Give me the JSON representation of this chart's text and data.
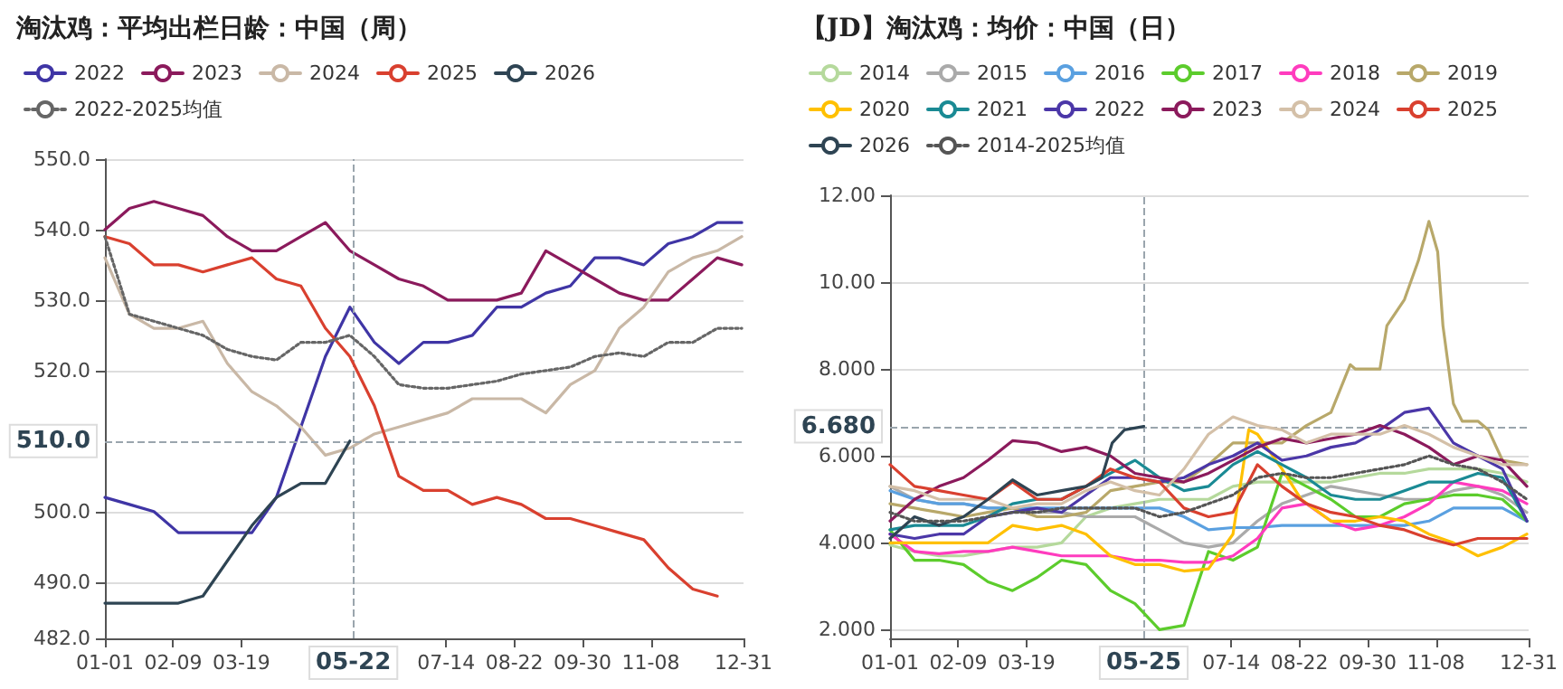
{
  "chart_data": [
    {
      "type": "line",
      "title": "淘汰鸡：平均出栏日龄：中国（周）",
      "legend": "top",
      "grid": "y",
      "xlim": [
        "--01-01",
        "--12-31"
      ],
      "ylim": [
        482,
        550
      ],
      "xticks": [
        {
          "value": "--01-01",
          "label": "01-01"
        },
        {
          "value": "--02-09",
          "label": "02-09"
        },
        {
          "value": "--03-19",
          "label": "03-19"
        },
        {
          "value": "--07-14",
          "label": "07-14"
        },
        {
          "value": "--08-22",
          "label": "08-22"
        },
        {
          "value": "--09-30",
          "label": "09-30"
        },
        {
          "value": "--11-08",
          "label": "11-08"
        },
        {
          "value": "--12-31",
          "label": "12-31"
        }
      ],
      "yticks": [
        {
          "value": 482,
          "label": "482.0"
        },
        {
          "value": 490,
          "label": "490.0"
        },
        {
          "value": 500,
          "label": "500.0"
        },
        {
          "value": 520,
          "label": "520.0"
        },
        {
          "value": 530,
          "label": "530.0"
        },
        {
          "value": 540,
          "label": "540.0"
        },
        {
          "value": 550,
          "label": "550.0"
        }
      ],
      "ref_lines": [
        {
          "axis": "x",
          "value": "--05-22",
          "label": "05-22",
          "color": "#9aa5ad",
          "line_style": "dashed"
        },
        {
          "axis": "y",
          "value": 510,
          "label": "510.0",
          "color": "#9aa5ad",
          "line_style": "dashed"
        }
      ],
      "x": [
        "--01-01",
        "--01-15",
        "--01-29",
        "--02-12",
        "--02-26",
        "--03-11",
        "--03-25",
        "--04-08",
        "--04-22",
        "--05-06",
        "--05-20",
        "--06-03",
        "--06-17",
        "--07-01",
        "--07-15",
        "--07-29",
        "--08-12",
        "--08-26",
        "--09-09",
        "--09-23",
        "--10-07",
        "--10-21",
        "--11-04",
        "--11-18",
        "--12-02",
        "--12-16",
        "--12-30"
      ],
      "series": [
        {
          "name": "2022",
          "color": "#3f35a5",
          "values": [
            502,
            501,
            500,
            497,
            497,
            497,
            497,
            502,
            512,
            522,
            529,
            524,
            521,
            524,
            524,
            525,
            529,
            529,
            531,
            532,
            536,
            536,
            535,
            538,
            539,
            541,
            541
          ]
        },
        {
          "name": "2023",
          "color": "#8b1a5c",
          "values": [
            540,
            543,
            544,
            543,
            542,
            539,
            537,
            537,
            539,
            541,
            537,
            535,
            533,
            532,
            530,
            530,
            530,
            531,
            537,
            535,
            533,
            531,
            530,
            530,
            533,
            536,
            535
          ]
        },
        {
          "name": "2024",
          "color": "#c9b8a6",
          "values": [
            536,
            528,
            526,
            526,
            527,
            521,
            517,
            515,
            512,
            508,
            509,
            511,
            512,
            513,
            514,
            516,
            516,
            516,
            514,
            518,
            520,
            526,
            529,
            534,
            536,
            537,
            539
          ]
        },
        {
          "name": "2025",
          "color": "#d9402f",
          "values": [
            539,
            538,
            535,
            535,
            534,
            535,
            536,
            533,
            532,
            526,
            522,
            515,
            505,
            503,
            503,
            501,
            502,
            501,
            499,
            499,
            498,
            497,
            496,
            492,
            489,
            488,
            null
          ]
        },
        {
          "name": "2026",
          "color": "#2e4453",
          "values": [
            487,
            487,
            487,
            487,
            488,
            493,
            498,
            502,
            504,
            504,
            510,
            null,
            null,
            null,
            null,
            null,
            null,
            null,
            null,
            null,
            null,
            null,
            null,
            null,
            null,
            null,
            null
          ]
        },
        {
          "name": "2022-2025均值",
          "color": "#666666",
          "line_style": "dotted",
          "values": [
            539,
            528,
            527,
            526,
            525,
            523,
            522,
            521.5,
            524,
            524,
            525,
            522,
            518,
            517.5,
            517.5,
            518,
            518.5,
            519.5,
            520,
            520.5,
            522,
            522.5,
            522,
            524,
            524,
            526,
            526
          ]
        }
      ]
    },
    {
      "type": "line",
      "title": "【JD】淘汰鸡：均价：中国（日）",
      "legend": "top",
      "grid": "y",
      "xlim": [
        "--01-01",
        "--12-31"
      ],
      "ylim": [
        1.8,
        12
      ],
      "xticks": [
        {
          "value": "--01-01",
          "label": "01-01"
        },
        {
          "value": "--02-09",
          "label": "02-09"
        },
        {
          "value": "--03-19",
          "label": "03-19"
        },
        {
          "value": "--07-14",
          "label": "07-14"
        },
        {
          "value": "--08-22",
          "label": "08-22"
        },
        {
          "value": "--09-30",
          "label": "09-30"
        },
        {
          "value": "--11-08",
          "label": "11-08"
        },
        {
          "value": "--12-31",
          "label": "12-31"
        }
      ],
      "yticks": [
        {
          "value": 2,
          "label": "2.000"
        },
        {
          "value": 4,
          "label": "4.000"
        },
        {
          "value": 6,
          "label": "6.000"
        },
        {
          "value": 8,
          "label": "8.000"
        },
        {
          "value": 10,
          "label": "10.00"
        },
        {
          "value": 12,
          "label": "12.00"
        }
      ],
      "ref_lines": [
        {
          "axis": "x",
          "value": "--05-25",
          "label": "05-25",
          "color": "#9aa5ad",
          "line_style": "dashed"
        },
        {
          "axis": "y",
          "value": 6.68,
          "label": "6.680",
          "color": "#9aa5ad",
          "line_style": "dashed"
        }
      ],
      "x": [
        "--01-01",
        "--01-15",
        "--01-29",
        "--02-12",
        "--02-26",
        "--03-11",
        "--03-25",
        "--04-08",
        "--04-22",
        "--05-06",
        "--05-20",
        "--06-03",
        "--06-17",
        "--07-01",
        "--07-15",
        "--07-29",
        "--08-12",
        "--08-26",
        "--09-09",
        "--09-23",
        "--10-07",
        "--10-21",
        "--11-04",
        "--11-18",
        "--12-02",
        "--12-16",
        "--12-30"
      ],
      "series": [
        {
          "name": "2014",
          "color": "#b5d99c",
          "values": [
            3.95,
            3.8,
            3.7,
            3.7,
            3.8,
            3.9,
            3.9,
            4.0,
            4.6,
            4.8,
            4.9,
            5.0,
            5.0,
            5.0,
            5.3,
            5.4,
            5.4,
            5.4,
            5.4,
            5.5,
            5.6,
            5.6,
            5.7,
            5.7,
            5.7,
            5.6,
            5.4
          ]
        },
        {
          "name": "2015",
          "color": "#aaaaaa",
          "values": [
            5.3,
            5.0,
            4.9,
            4.9,
            4.8,
            4.8,
            4.7,
            4.7,
            4.6,
            4.6,
            4.6,
            4.3,
            4.0,
            3.9,
            4.0,
            4.5,
            4.9,
            5.1,
            5.3,
            5.2,
            5.1,
            5.0,
            5.0,
            5.2,
            5.3,
            5.1,
            4.7
          ]
        },
        {
          "name": "2016",
          "color": "#5aa0e0",
          "values": [
            5.2,
            5.0,
            4.9,
            4.9,
            4.8,
            4.8,
            4.8,
            4.8,
            4.8,
            4.8,
            4.8,
            4.8,
            4.6,
            4.3,
            4.35,
            4.35,
            4.4,
            4.4,
            4.4,
            4.4,
            4.4,
            4.4,
            4.5,
            4.8,
            4.8,
            4.8,
            4.5
          ]
        },
        {
          "name": "2017",
          "color": "#5ccc2c",
          "values": [
            4.3,
            3.6,
            3.6,
            3.5,
            3.1,
            2.9,
            3.2,
            3.6,
            3.5,
            2.9,
            2.6,
            2.0,
            2.1,
            3.8,
            3.6,
            3.9,
            5.6,
            5.3,
            5.0,
            4.6,
            4.6,
            4.9,
            5.0,
            5.1,
            5.1,
            5.0,
            4.5
          ]
        },
        {
          "name": "2018",
          "color": "#ff3cbe",
          "values": [
            4.2,
            3.8,
            3.75,
            3.8,
            3.8,
            3.9,
            3.8,
            3.7,
            3.7,
            3.7,
            3.6,
            3.6,
            3.55,
            3.55,
            3.7,
            4.1,
            4.8,
            4.9,
            4.5,
            4.3,
            4.4,
            4.6,
            4.9,
            5.4,
            5.3,
            5.2,
            4.9
          ]
        },
        {
          "name": "2019",
          "color": "#b8a86a",
          "x": [
            "--01-01",
            "--01-15",
            "--01-29",
            "--02-12",
            "--02-26",
            "--03-11",
            "--03-25",
            "--04-08",
            "--04-22",
            "--05-06",
            "--05-20",
            "--06-03",
            "--06-17",
            "--07-01",
            "--07-15",
            "--07-29",
            "--08-12",
            "--08-26",
            "--09-09",
            "--09-20",
            "--09-23",
            "--10-07",
            "--10-11",
            "--10-21",
            "--10-29",
            "--11-04",
            "--11-09",
            "--11-12",
            "--11-18",
            "--11-23",
            "--12-02",
            "--12-08",
            "--12-16",
            "--12-30"
          ],
          "values": [
            4.9,
            4.8,
            4.7,
            4.6,
            4.7,
            4.8,
            4.6,
            4.6,
            4.7,
            5.2,
            5.3,
            5.4,
            5.4,
            5.8,
            6.3,
            6.3,
            6.3,
            6.7,
            7.0,
            8.1,
            8.0,
            8.0,
            9.0,
            9.6,
            10.5,
            11.4,
            10.7,
            9.0,
            7.2,
            6.8,
            6.8,
            6.6,
            5.9,
            5.8
          ]
        },
        {
          "name": "2020",
          "color": "#ffc000",
          "x": [
            "--01-01",
            "--01-15",
            "--01-29",
            "--02-12",
            "--02-26",
            "--03-11",
            "--03-25",
            "--04-08",
            "--04-22",
            "--05-06",
            "--05-20",
            "--06-03",
            "--06-17",
            "--07-01",
            "--07-15",
            "--07-24",
            "--07-29",
            "--08-12",
            "--08-23",
            "--09-09",
            "--09-23",
            "--10-07",
            "--10-21",
            "--11-04",
            "--11-18",
            "--12-02",
            "--12-16",
            "--12-30"
          ],
          "values": [
            4.0,
            4.0,
            4.0,
            4.0,
            4.0,
            4.4,
            4.3,
            4.4,
            4.2,
            3.7,
            3.5,
            3.5,
            3.35,
            3.4,
            4.2,
            6.6,
            6.5,
            5.7,
            5.0,
            4.5,
            4.5,
            4.6,
            4.5,
            4.2,
            4.0,
            3.7,
            3.9,
            4.2
          ]
        },
        {
          "name": "2021",
          "color": "#1a8a94",
          "values": [
            4.3,
            4.4,
            4.4,
            4.4,
            4.6,
            4.9,
            5.0,
            5.0,
            5.3,
            5.6,
            5.9,
            5.5,
            5.2,
            5.3,
            5.8,
            6.1,
            5.8,
            5.5,
            5.1,
            5.0,
            5.0,
            5.2,
            5.4,
            5.4,
            5.6,
            5.5,
            4.5
          ]
        },
        {
          "name": "2022",
          "color": "#4b37a8",
          "values": [
            4.2,
            4.1,
            4.2,
            4.2,
            4.6,
            4.7,
            4.8,
            4.7,
            5.1,
            5.5,
            5.5,
            5.4,
            5.5,
            5.8,
            6.0,
            6.3,
            5.9,
            6.0,
            6.2,
            6.3,
            6.6,
            7.0,
            7.1,
            6.3,
            6.0,
            5.7,
            4.5
          ]
        },
        {
          "name": "2023",
          "color": "#8b1a5c",
          "values": [
            4.5,
            5.0,
            5.3,
            5.5,
            5.9,
            6.35,
            6.3,
            6.1,
            6.2,
            6.0,
            5.6,
            5.5,
            5.4,
            5.6,
            5.9,
            6.2,
            6.4,
            6.3,
            6.4,
            6.5,
            6.7,
            6.5,
            6.2,
            5.8,
            6.0,
            5.9,
            5.3
          ]
        },
        {
          "name": "2024",
          "color": "#d4c0a8",
          "values": [
            5.3,
            5.2,
            5.0,
            5.0,
            5.0,
            4.8,
            4.9,
            4.9,
            5.2,
            5.4,
            5.2,
            5.1,
            5.7,
            6.5,
            6.9,
            6.7,
            6.6,
            6.3,
            6.5,
            6.5,
            6.5,
            6.7,
            6.5,
            6.2,
            6.0,
            5.8,
            5.8
          ]
        },
        {
          "name": "2025",
          "color": "#d9402f",
          "values": [
            5.8,
            5.3,
            5.2,
            5.1,
            5.0,
            5.4,
            5.0,
            5.0,
            5.3,
            5.7,
            5.5,
            5.4,
            4.8,
            4.6,
            4.7,
            5.8,
            5.3,
            4.9,
            4.7,
            4.6,
            4.4,
            4.3,
            4.1,
            3.95,
            4.1,
            4.1,
            4.1
          ]
        },
        {
          "name": "2026",
          "color": "#2e4453",
          "x": [
            "--01-01",
            "--01-15",
            "--01-29",
            "--02-12",
            "--02-26",
            "--03-11",
            "--03-25",
            "--04-08",
            "--04-22",
            "--05-01",
            "--05-07",
            "--05-14",
            "--05-25"
          ],
          "values": [
            4.1,
            4.6,
            4.4,
            4.6,
            5.0,
            5.45,
            5.1,
            5.2,
            5.3,
            5.5,
            6.3,
            6.6,
            6.68
          ]
        },
        {
          "name": "2014-2025均值",
          "color": "#555555",
          "line_style": "dotted",
          "values": [
            4.7,
            4.5,
            4.5,
            4.5,
            4.6,
            4.7,
            4.7,
            4.8,
            4.8,
            4.8,
            4.8,
            4.6,
            4.7,
            4.9,
            5.1,
            5.5,
            5.6,
            5.5,
            5.5,
            5.6,
            5.7,
            5.8,
            6.0,
            5.8,
            5.7,
            5.4,
            5.0
          ]
        }
      ]
    }
  ]
}
